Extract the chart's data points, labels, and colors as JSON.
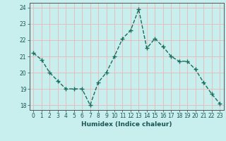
{
  "x": [
    0,
    1,
    2,
    3,
    4,
    5,
    6,
    7,
    8,
    9,
    10,
    11,
    12,
    13,
    14,
    15,
    16,
    17,
    18,
    19,
    20,
    21,
    22,
    23
  ],
  "y": [
    21.2,
    20.8,
    20.0,
    19.5,
    19.0,
    19.0,
    19.0,
    18.0,
    19.4,
    20.0,
    21.0,
    22.1,
    22.6,
    23.9,
    21.5,
    22.1,
    21.6,
    21.0,
    20.7,
    20.7,
    20.2,
    19.4,
    18.7,
    18.1
  ],
  "xlabel": "Humidex (Indice chaleur)",
  "ylabel": "",
  "title": "",
  "bg_color": "#c8eeed",
  "grid_color": "#e8b8b8",
  "line_color": "#1a6e5e",
  "marker_color": "#1a6e5e",
  "xlim": [
    -0.5,
    23.5
  ],
  "ylim": [
    17.7,
    24.3
  ],
  "yticks": [
    18,
    19,
    20,
    21,
    22,
    23,
    24
  ],
  "xticks": [
    0,
    1,
    2,
    3,
    4,
    5,
    6,
    7,
    8,
    9,
    10,
    11,
    12,
    13,
    14,
    15,
    16,
    17,
    18,
    19,
    20,
    21,
    22,
    23
  ]
}
